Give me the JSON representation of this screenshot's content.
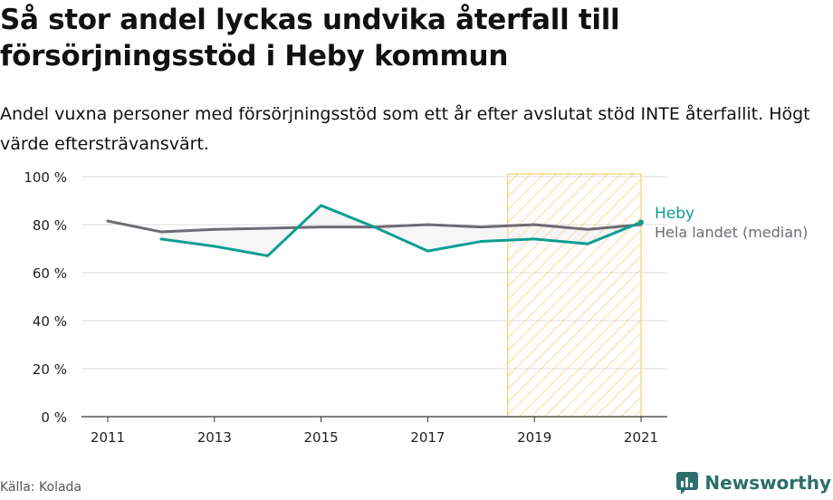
{
  "title": "Så stor andel lyckas undvika återfall till försörjningsstöd i Heby kommun",
  "subtitle": "Andel vuxna personer med försörjningsstöd som ett år efter avslutat stöd INTE återfallit. Högt värde eftersträvansvärt.",
  "source": "Källa: Kolada",
  "brand": "Newsworthy",
  "colors": {
    "heby": "#0e9e92",
    "national": "#6e6b73",
    "highlight": "#f7cf70",
    "grid": "#dddddd"
  },
  "chart_data": {
    "type": "line",
    "x": [
      2011,
      2012,
      2013,
      2014,
      2015,
      2016,
      2017,
      2018,
      2019,
      2020,
      2021
    ],
    "x_ticks": [
      "2011",
      "2013",
      "2015",
      "2017",
      "2019",
      "2021"
    ],
    "y_ticks": [
      "0 %",
      "20 %",
      "40 %",
      "60 %",
      "80 %",
      "100 %"
    ],
    "ylim": [
      0,
      100
    ],
    "xlim": [
      2011,
      2021
    ],
    "highlight_range": [
      2018.5,
      2021
    ],
    "series": [
      {
        "name": "Heby",
        "values": [
          null,
          74,
          71,
          67,
          88,
          79,
          69,
          73,
          74,
          72,
          81
        ]
      },
      {
        "name": "Hela landet (median)",
        "values": [
          81.5,
          77,
          78,
          78.5,
          79,
          79,
          80,
          79,
          80,
          78,
          80
        ]
      }
    ]
  }
}
